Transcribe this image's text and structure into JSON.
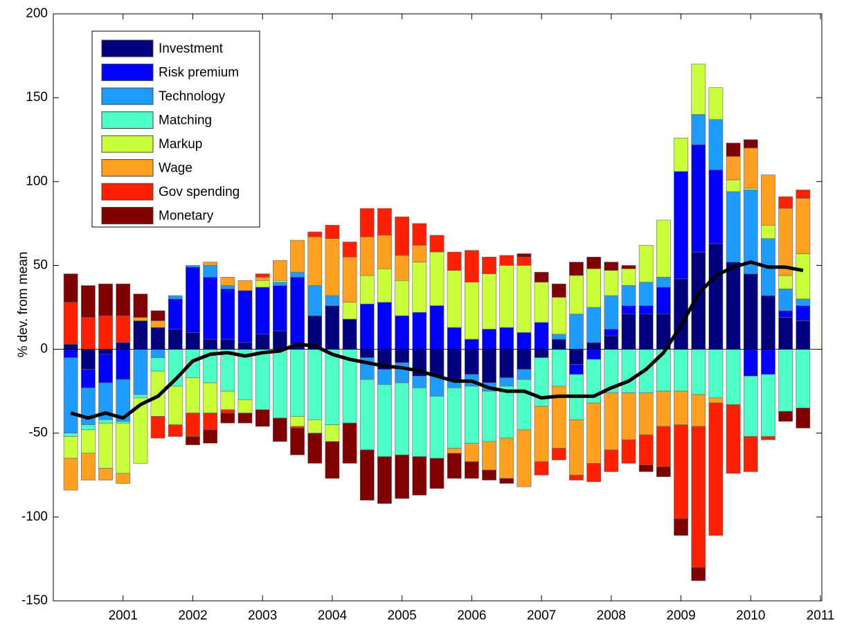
{
  "chart_data": {
    "type": "stacked-bar",
    "ylabel": "% dev. from mean",
    "x": [
      2000.25,
      2000.5,
      2000.75,
      2001,
      2001.25,
      2001.5,
      2001.75,
      2002,
      2002.25,
      2002.5,
      2002.75,
      2003,
      2003.25,
      2003.5,
      2003.75,
      2004,
      2004.25,
      2004.5,
      2004.75,
      2005,
      2005.25,
      2005.5,
      2005.75,
      2006,
      2006.25,
      2006.5,
      2006.75,
      2007,
      2007.25,
      2007.5,
      2007.75,
      2008,
      2008.25,
      2008.5,
      2008.75,
      2009,
      2009.25,
      2009.5,
      2009.75,
      2010,
      2010.25,
      2010.5,
      2010.75
    ],
    "series": [
      {
        "name": "Investment",
        "color": "#00007f",
        "values": [
          3,
          -12,
          -3,
          4,
          17,
          13,
          12,
          10,
          6,
          6,
          4,
          9,
          11,
          3,
          20,
          26,
          18,
          -5,
          -12,
          -8,
          -16,
          -16,
          -18,
          -15,
          -20,
          -17,
          -12,
          -5,
          6,
          -9,
          4,
          8,
          21,
          21,
          21,
          42,
          58,
          63,
          52,
          45,
          32,
          19,
          17
        ]
      },
      {
        "name": "Risk premium",
        "color": "#0000ff",
        "values": [
          -5,
          -11,
          -17,
          -18,
          0,
          0,
          18,
          39,
          37,
          30,
          31,
          28,
          27,
          40,
          0,
          0,
          0,
          27,
          28,
          20,
          22,
          26,
          13,
          6,
          12,
          13,
          10,
          16,
          0,
          -6,
          -6,
          4,
          5,
          5,
          16,
          64,
          64,
          44,
          0,
          -16,
          -15,
          4,
          9
        ]
      },
      {
        "name": "Technology",
        "color": "#1e9bff",
        "values": [
          -45,
          -22,
          -22,
          -25,
          -27,
          -5,
          2,
          1,
          7,
          2,
          0,
          0,
          2,
          3,
          18,
          6,
          0,
          -13,
          -9,
          -12,
          -7,
          -12,
          -5,
          -7,
          -5,
          -5,
          -6,
          0,
          3,
          21,
          21,
          20,
          12,
          14,
          6,
          0,
          18,
          30,
          42,
          50,
          34,
          13,
          4
        ]
      },
      {
        "name": "Matching",
        "color": "#4dffc4",
        "values": [
          -2,
          -3,
          -2,
          -1,
          -2,
          -8,
          -22,
          -17,
          -20,
          -25,
          -30,
          -36,
          -41,
          -40,
          -42,
          -45,
          -44,
          -42,
          -43,
          -43,
          -41,
          -37,
          -36,
          -34,
          -30,
          -31,
          -30,
          -29,
          -22,
          -27,
          -26,
          -26,
          -26,
          -26,
          -25,
          -25,
          -27,
          -29,
          -33,
          -36,
          -37,
          -37,
          -35
        ]
      },
      {
        "name": "Markup",
        "color": "#c8ff3a",
        "values": [
          -13,
          -14,
          -27,
          -30,
          -39,
          -27,
          -23,
          -21,
          -18,
          -11,
          -8,
          4,
          1,
          -6,
          -8,
          -10,
          10,
          17,
          20,
          21,
          30,
          32,
          34,
          34,
          33,
          37,
          40,
          24,
          22,
          23,
          23,
          15,
          10,
          22,
          34,
          20,
          30,
          19,
          7,
          1,
          8,
          8,
          27
        ]
      },
      {
        "name": "Wage",
        "color": "#ffa020",
        "values": [
          -19,
          -16,
          -7,
          -6,
          2,
          4,
          0,
          0,
          2,
          5,
          6,
          2,
          12,
          19,
          29,
          34,
          27,
          23,
          20,
          15,
          10,
          0,
          -3,
          -11,
          -17,
          -24,
          -34,
          -33,
          -37,
          -33,
          -36,
          -34,
          -28,
          -25,
          -21,
          -20,
          -19,
          -3,
          14,
          24,
          30,
          40,
          33
        ]
      },
      {
        "name": "Gov spending",
        "color": "#ff2000",
        "values": [
          25,
          19,
          20,
          16,
          0,
          -13,
          -7,
          -14,
          -10,
          -2,
          0,
          2,
          0,
          -1,
          3,
          8,
          9,
          17,
          16,
          23,
          13,
          10,
          11,
          19,
          10,
          6,
          5,
          -8,
          -7,
          -3,
          -11,
          -13,
          -14,
          -18,
          -24,
          -56,
          -84,
          -79,
          -41,
          -21,
          -2,
          7,
          5
        ]
      },
      {
        "name": "Monetary",
        "color": "#800000",
        "values": [
          17,
          19,
          19,
          19,
          14,
          6,
          0,
          -5,
          -8,
          -6,
          -6,
          -10,
          -14,
          -16,
          -18,
          -22,
          -24,
          -30,
          -28,
          -26,
          -23,
          -18,
          -15,
          -10,
          -6,
          -3,
          2,
          6,
          8,
          8,
          7,
          5,
          2,
          -4,
          -6,
          -10,
          -8,
          0,
          8,
          5,
          0,
          -6,
          -12
        ]
      }
    ],
    "line_values": [
      -38,
      -41,
      -38,
      -41,
      -33,
      -28,
      -18,
      -7,
      -3,
      -2,
      -4,
      -2,
      -1,
      3,
      2,
      -3,
      -6,
      -8,
      -10,
      -11,
      -13,
      -16,
      -19,
      -19,
      -23,
      -25,
      -25,
      -29,
      -28,
      -28,
      -28,
      -23,
      -19,
      -12,
      -2,
      14,
      33,
      44,
      49,
      52,
      49,
      49,
      47
    ],
    "line_color": "#000000",
    "xlim": [
      2000,
      2011
    ],
    "xticks": [
      2001,
      2002,
      2003,
      2004,
      2005,
      2006,
      2007,
      2008,
      2009,
      2010,
      2011
    ],
    "ylim": [
      -150,
      200
    ],
    "yticks": [
      -150,
      -100,
      -50,
      0,
      50,
      100,
      150,
      200
    ],
    "legend": "upper left"
  }
}
